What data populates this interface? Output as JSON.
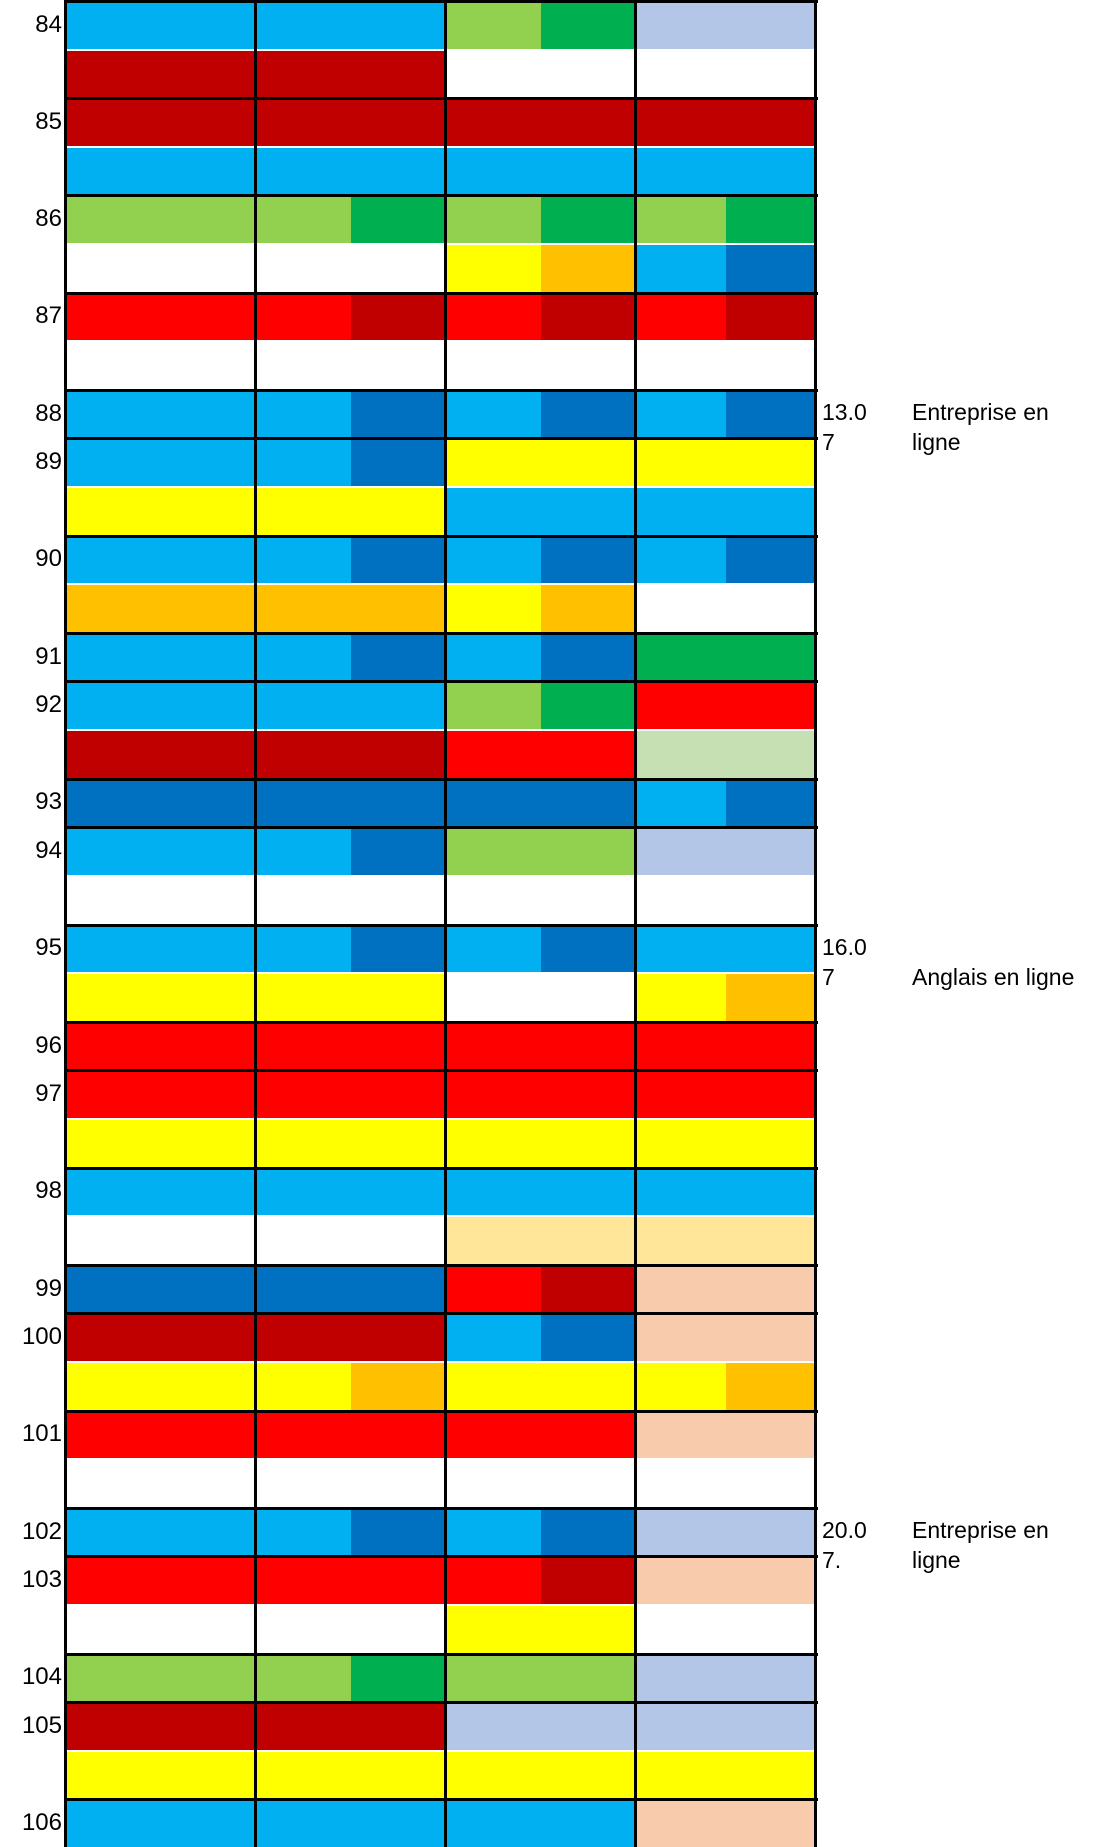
{
  "colors": {
    "A": "#00b0f0",
    "B": "#0070c0",
    "R": "#ff0000",
    "D": "#c00000",
    "Y": "#ffff00",
    "O": "#ffc000",
    "G": "#92d050",
    "E": "#00b050",
    "L": "#b4c6e7",
    "P": "#f8cbad",
    "S": "#c6e0b4",
    "T": "#ffe699",
    "W": "#ffffff"
  },
  "rows": [
    {
      "label": "84",
      "top": [
        "A",
        "A",
        "A",
        "A",
        "G",
        "E",
        "L",
        "L"
      ],
      "bottom": [
        "D",
        "D",
        "D",
        "D",
        "W",
        "W",
        "W",
        "W"
      ]
    },
    {
      "label": "85",
      "top": [
        "D",
        "D",
        "D",
        "D",
        "D",
        "D",
        "D",
        "D"
      ],
      "bottom": [
        "A",
        "A",
        "A",
        "A",
        "A",
        "A",
        "A",
        "A"
      ]
    },
    {
      "label": "86",
      "top": [
        "G",
        "G",
        "G",
        "E",
        "G",
        "E",
        "G",
        "E"
      ],
      "bottom": [
        "W",
        "W",
        "W",
        "W",
        "Y",
        "O",
        "A",
        "B"
      ]
    },
    {
      "label": "87",
      "top": [
        "R",
        "R",
        "R",
        "D",
        "R",
        "D",
        "R",
        "D"
      ],
      "bottom": [
        "W",
        "W",
        "W",
        "W",
        "W",
        "W",
        "W",
        "W"
      ]
    },
    {
      "label": "88",
      "top": [
        "A",
        "A",
        "A",
        "B",
        "A",
        "B",
        "A",
        "B"
      ],
      "bottom": null
    },
    {
      "label": "89",
      "top": [
        "A",
        "A",
        "A",
        "B",
        "Y",
        "Y",
        "Y",
        "Y"
      ],
      "bottom": [
        "Y",
        "Y",
        "Y",
        "Y",
        "A",
        "A",
        "A",
        "A"
      ]
    },
    {
      "label": "90",
      "top": [
        "A",
        "A",
        "A",
        "B",
        "A",
        "B",
        "A",
        "B"
      ],
      "bottom": [
        "O",
        "O",
        "O",
        "O",
        "Y",
        "O",
        "W",
        "W"
      ]
    },
    {
      "label": "91",
      "top": [
        "A",
        "A",
        "A",
        "B",
        "A",
        "B",
        "E",
        "E"
      ],
      "bottom": null
    },
    {
      "label": "92",
      "top": [
        "A",
        "A",
        "A",
        "A",
        "G",
        "E",
        "R",
        "R"
      ],
      "bottom": [
        "D",
        "D",
        "D",
        "D",
        "R",
        "R",
        "S",
        "S"
      ]
    },
    {
      "label": "93",
      "top": [
        "B",
        "B",
        "B",
        "B",
        "B",
        "B",
        "A",
        "B"
      ],
      "bottom": null
    },
    {
      "label": "94",
      "top": [
        "A",
        "A",
        "A",
        "B",
        "G",
        "G",
        "L",
        "L"
      ],
      "bottom": [
        "W",
        "W",
        "W",
        "W",
        "W",
        "W",
        "W",
        "W"
      ]
    },
    {
      "label": "95",
      "top": [
        "A",
        "A",
        "A",
        "B",
        "A",
        "B",
        "A",
        "A"
      ],
      "bottom": [
        "Y",
        "Y",
        "Y",
        "Y",
        "W",
        "W",
        "Y",
        "O"
      ]
    },
    {
      "label": "96",
      "top": [
        "R",
        "R",
        "R",
        "R",
        "R",
        "R",
        "R",
        "R"
      ],
      "bottom": null
    },
    {
      "label": "97",
      "top": [
        "R",
        "R",
        "R",
        "R",
        "R",
        "R",
        "R",
        "R"
      ],
      "bottom": [
        "Y",
        "Y",
        "Y",
        "Y",
        "Y",
        "Y",
        "Y",
        "Y"
      ]
    },
    {
      "label": "98",
      "top": [
        "A",
        "A",
        "A",
        "A",
        "A",
        "A",
        "A",
        "A"
      ],
      "bottom": [
        "W",
        "W",
        "W",
        "W",
        "T",
        "T",
        "T",
        "T"
      ]
    },
    {
      "label": "99",
      "top": [
        "B",
        "B",
        "B",
        "B",
        "R",
        "D",
        "P",
        "P"
      ],
      "bottom": null
    },
    {
      "label": "100",
      "top": [
        "D",
        "D",
        "D",
        "D",
        "A",
        "B",
        "P",
        "P"
      ],
      "bottom": [
        "Y",
        "Y",
        "Y",
        "O",
        "Y",
        "Y",
        "Y",
        "O"
      ]
    },
    {
      "label": "101",
      "top": [
        "R",
        "R",
        "R",
        "R",
        "R",
        "R",
        "P",
        "P"
      ],
      "bottom": [
        "W",
        "W",
        "W",
        "W",
        "W",
        "W",
        "W",
        "W"
      ]
    },
    {
      "label": "102",
      "top": [
        "A",
        "A",
        "A",
        "B",
        "A",
        "B",
        "L",
        "L"
      ],
      "bottom": null
    },
    {
      "label": "103",
      "top": [
        "R",
        "R",
        "R",
        "R",
        "R",
        "D",
        "P",
        "P"
      ],
      "bottom": [
        "W",
        "W",
        "W",
        "W",
        "Y",
        "Y",
        "W",
        "W"
      ]
    },
    {
      "label": "104",
      "top": [
        "G",
        "G",
        "G",
        "E",
        "G",
        "G",
        "L",
        "L"
      ],
      "bottom": null
    },
    {
      "label": "105",
      "top": [
        "D",
        "D",
        "D",
        "D",
        "L",
        "L",
        "L",
        "L"
      ],
      "bottom": [
        "Y",
        "Y",
        "Y",
        "Y",
        "Y",
        "Y",
        "Y",
        "Y"
      ]
    },
    {
      "label": "106",
      "top": [
        "A",
        "A",
        "A",
        "A",
        "A",
        "A",
        "P",
        "P"
      ],
      "bottom": null
    }
  ],
  "notes": [
    {
      "date": "13.0\n7",
      "text": "Entreprise en\nligne"
    },
    {
      "date": "16.0\n7",
      "text": "Anglais en ligne"
    },
    {
      "date": "20.0\n7.",
      "text": "Entreprise en\nligne"
    }
  ]
}
